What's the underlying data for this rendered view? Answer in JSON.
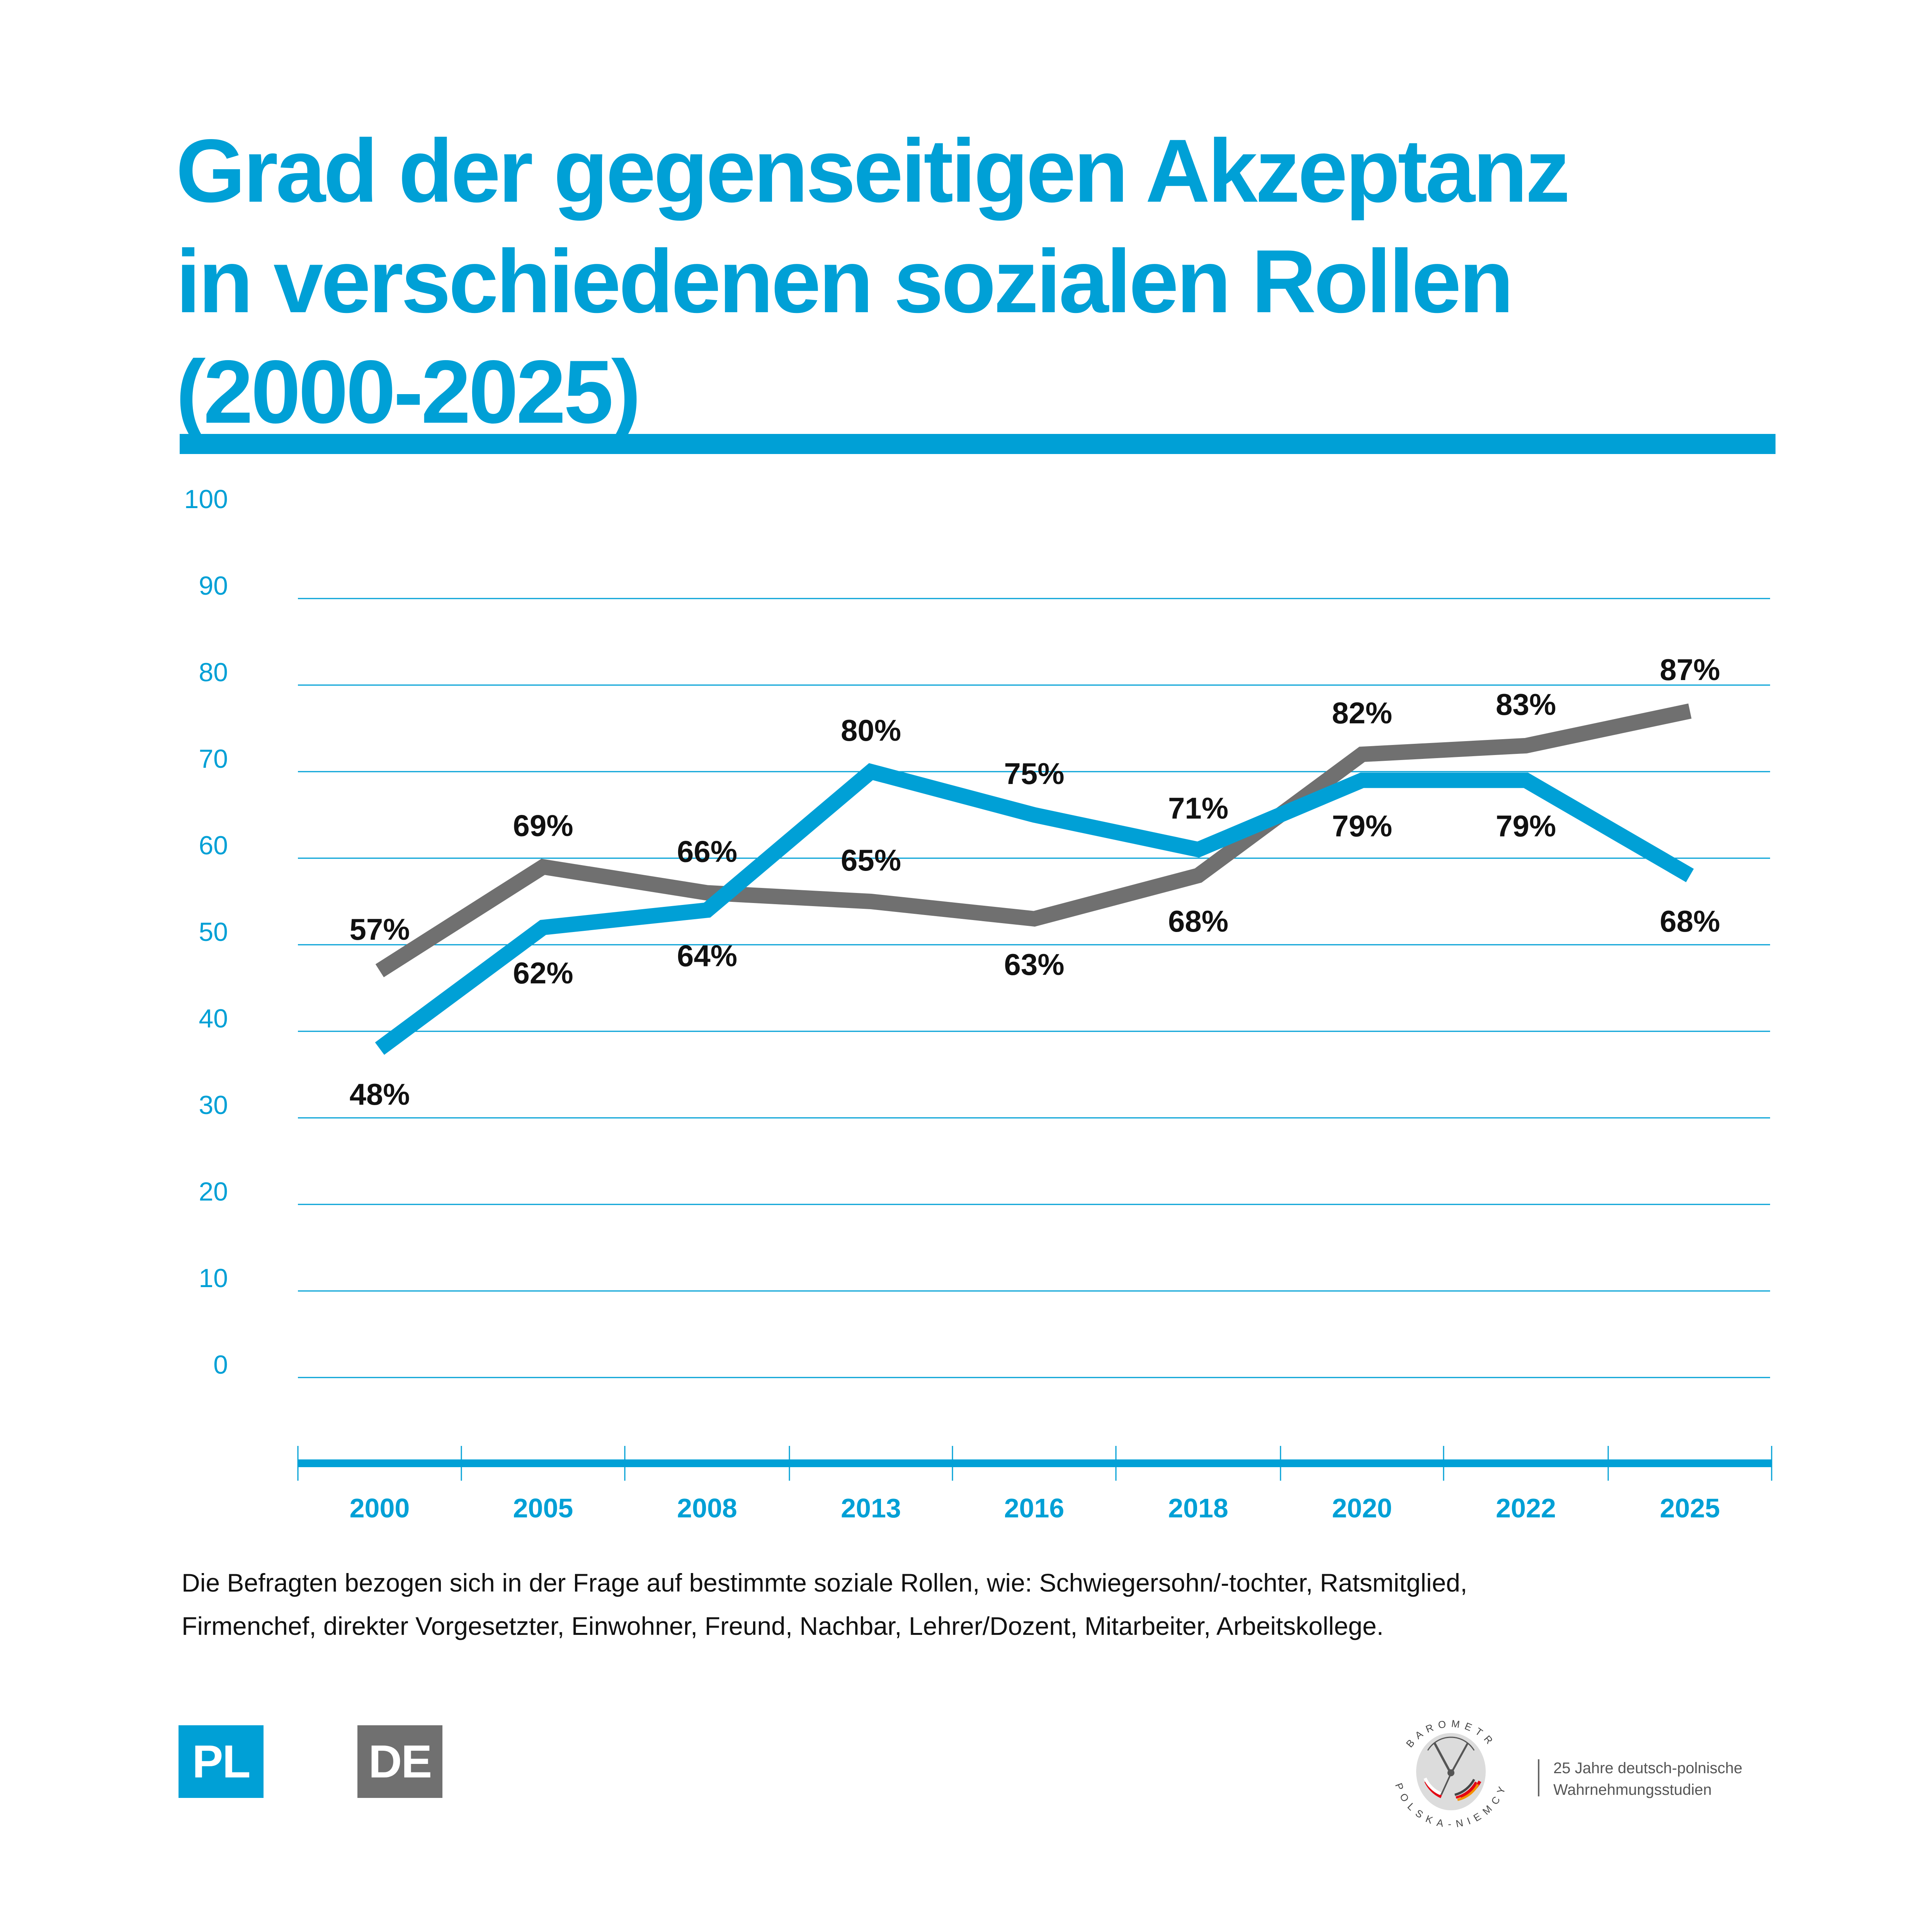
{
  "title": {
    "line1": "Grad der gegenseitigen Akzeptanz",
    "line2": "in verschiedenen sozialen Rollen",
    "line3": "(2000-2025)"
  },
  "colors": {
    "accent": "#00a0d6",
    "pl_series": "#00a0d6",
    "de_series": "#707070",
    "label_text": "#111111"
  },
  "chart_data": {
    "type": "line",
    "title": "Grad der gegenseitigen Akzeptanz in verschiedenen sozialen Rollen (2000-2025)",
    "xlabel": "",
    "ylabel": "",
    "categories": [
      "2000",
      "2005",
      "2008",
      "2013",
      "2016",
      "2018",
      "2020",
      "2022",
      "2025"
    ],
    "y_ticks": [
      "100",
      "90",
      "80",
      "70",
      "60",
      "50",
      "40",
      "30",
      "20",
      "10",
      "0"
    ],
    "ylim": [
      0,
      100
    ],
    "grid": true,
    "plot_offset_note": "lines are drawn 10 points below their printed labels on the axis scale",
    "plot_offset": -10,
    "series": [
      {
        "name": "PL",
        "color": "#00a0d6",
        "values": [
          48,
          62,
          64,
          80,
          75,
          71,
          79,
          79,
          68
        ],
        "labels": [
          "48%",
          "62%",
          "64%",
          "80%",
          "75%",
          "71%",
          "79%",
          "79%",
          "68%"
        ],
        "label_position": [
          "below",
          "below",
          "below",
          "above",
          "above",
          "above",
          "below",
          "below",
          "below"
        ]
      },
      {
        "name": "DE",
        "color": "#707070",
        "values": [
          57,
          69,
          66,
          65,
          63,
          68,
          82,
          83,
          87
        ],
        "labels": [
          "57%",
          "69%",
          "66%",
          "65%",
          "63%",
          "68%",
          "82%",
          "83%",
          "87%"
        ],
        "label_position": [
          "above",
          "above",
          "above",
          "above",
          "below",
          "below",
          "above",
          "above",
          "above"
        ]
      }
    ],
    "legend": [
      "PL",
      "DE"
    ],
    "legend_placement": "bottom-left"
  },
  "note": {
    "line1": "Die Befragten bezogen sich in der Frage auf bestimmte soziale Rollen, wie: Schwiegersohn/-tochter, Ratsmitglied,",
    "line2": "Firmenchef, direkter Vorgesetzter, Einwohner, Freund, Nachbar, Lehrer/Dozent, Mitarbeiter, Arbeitskollege."
  },
  "legend": {
    "pl": "PL",
    "de": "DE"
  },
  "badge": {
    "ring_text_top": "BAROMETR",
    "ring_text_bottom": "POLSKA-NIEMCY",
    "line1": "25 Jahre deutsch-polnische",
    "line2": "Wahrnehmungsstudien"
  }
}
